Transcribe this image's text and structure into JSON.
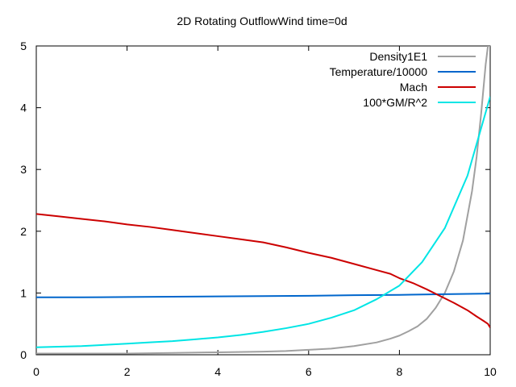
{
  "chart_data": {
    "type": "line",
    "title": "2D Rotating OutflowWind time=0d",
    "xlabel": "",
    "ylabel": "",
    "xlim": [
      0,
      10
    ],
    "ylim": [
      0,
      5
    ],
    "xticks": [
      0,
      2,
      4,
      6,
      8,
      10
    ],
    "yticks": [
      0,
      1,
      2,
      3,
      4,
      5
    ],
    "grid": false,
    "legend": "top-right",
    "series": [
      {
        "name": "Density1E1",
        "color": "#a0a0a0",
        "x": [
          0,
          1,
          2,
          3,
          4,
          5,
          5.5,
          6,
          6.5,
          7,
          7.5,
          7.8,
          8,
          8.2,
          8.4,
          8.6,
          8.8,
          9,
          9.2,
          9.4,
          9.6,
          9.7,
          9.8,
          9.85,
          9.9,
          9.95,
          10
        ],
        "y": [
          0.02,
          0.02,
          0.02,
          0.03,
          0.04,
          0.05,
          0.06,
          0.08,
          0.1,
          0.14,
          0.2,
          0.26,
          0.31,
          0.38,
          0.46,
          0.58,
          0.76,
          1.0,
          1.35,
          1.85,
          2.65,
          3.2,
          3.9,
          4.3,
          4.7,
          5.0,
          5.0
        ]
      },
      {
        "name": "Temperature/10000",
        "color": "#0066cc",
        "x": [
          0,
          1,
          2,
          3,
          4,
          5,
          6,
          7,
          8,
          9,
          10
        ],
        "y": [
          0.93,
          0.93,
          0.935,
          0.94,
          0.945,
          0.95,
          0.955,
          0.965,
          0.97,
          0.98,
          0.99
        ]
      },
      {
        "name": "Mach",
        "color": "#cc0000",
        "x": [
          0,
          0.5,
          1,
          1.5,
          2,
          2.5,
          3,
          3.5,
          4,
          4.5,
          5,
          5.5,
          6,
          6.5,
          7,
          7.5,
          7.8,
          8,
          8.3,
          8.6,
          8.9,
          9.2,
          9.5,
          9.7,
          9.85,
          9.95,
          10
        ],
        "y": [
          2.28,
          2.24,
          2.2,
          2.16,
          2.11,
          2.07,
          2.02,
          1.97,
          1.92,
          1.87,
          1.82,
          1.74,
          1.65,
          1.57,
          1.47,
          1.37,
          1.31,
          1.24,
          1.16,
          1.06,
          0.95,
          0.84,
          0.72,
          0.62,
          0.55,
          0.5,
          0.44
        ]
      },
      {
        "name": "100*GM/R^2",
        "color": "#00e5e5",
        "x": [
          0,
          0.5,
          1,
          1.5,
          2,
          2.5,
          3,
          3.5,
          4,
          4.5,
          5,
          5.5,
          6,
          6.5,
          7,
          7.5,
          8,
          8.5,
          9,
          9.5,
          10
        ],
        "y": [
          0.12,
          0.13,
          0.14,
          0.16,
          0.18,
          0.2,
          0.22,
          0.25,
          0.28,
          0.32,
          0.37,
          0.43,
          0.5,
          0.6,
          0.72,
          0.9,
          1.12,
          1.5,
          2.05,
          2.9,
          4.18
        ]
      }
    ]
  }
}
